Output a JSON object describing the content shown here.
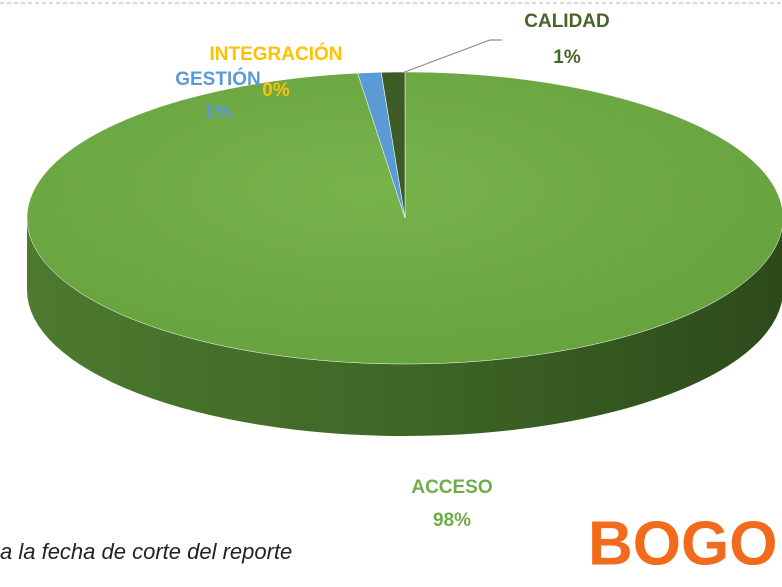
{
  "chart_data": {
    "type": "pie3d",
    "categories": [
      "ACCESO",
      "GESTIÓN",
      "INTEGRACIÓN",
      "CALIDAD"
    ],
    "values": [
      98,
      1,
      0,
      1
    ],
    "value_labels": [
      "98%",
      "1%",
      "0%",
      "1%"
    ],
    "colors": [
      "#70ad47",
      "#5b9bd5",
      "#ffc000",
      "#3d5c25"
    ]
  },
  "footer_text": "a la fecha de corte del reporte",
  "logo": "BOGO"
}
